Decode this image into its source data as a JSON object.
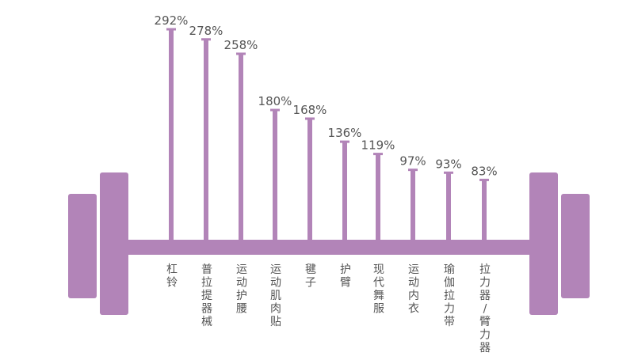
{
  "chart_data": {
    "type": "bar",
    "categories": [
      "杠铃",
      "普拉提器械",
      "运动护腰",
      "运动肌肉贴",
      "毽子",
      "护臂",
      "现代舞服",
      "运动内衣",
      "瑜伽拉力带",
      "拉力器/臂力器"
    ],
    "values": [
      292,
      278,
      258,
      180,
      168,
      136,
      119,
      97,
      93,
      83
    ],
    "value_labels": [
      "292%",
      "278%",
      "258%",
      "180%",
      "168%",
      "136%",
      "119%",
      "97%",
      "93%",
      "83%"
    ],
    "unit": "%",
    "style": "barbell",
    "colors": {
      "bar": "#b284b8",
      "text": "#555555"
    },
    "grid": false,
    "legend": "none"
  }
}
